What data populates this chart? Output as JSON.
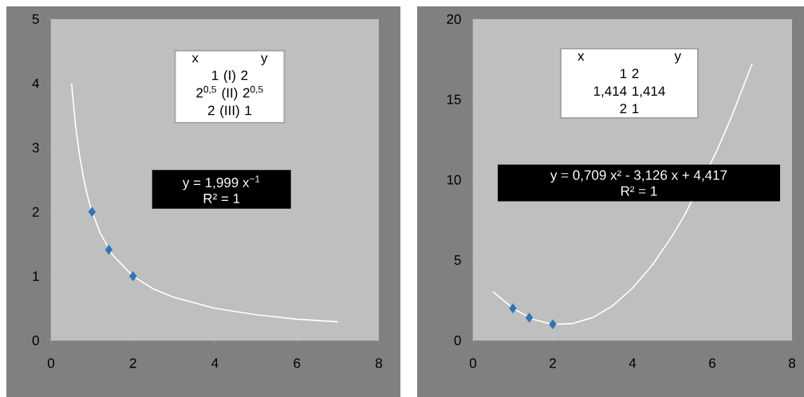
{
  "chart_data": [
    {
      "type": "scatter",
      "xlim": [
        0,
        8
      ],
      "ylim": [
        0,
        5
      ],
      "xticks": [
        0,
        2,
        4,
        6,
        8
      ],
      "yticks": [
        0,
        1,
        2,
        3,
        4,
        5
      ],
      "series": [
        {
          "marker": "diamond",
          "color": "#2e75b6",
          "x": [
            1,
            1.41,
            2
          ],
          "values": [
            2,
            1.41,
            1
          ]
        },
        {
          "type": "line",
          "marker": "none",
          "color": "#ffffff",
          "x": [
            0.5,
            0.6,
            0.7,
            0.8,
            0.9,
            1,
            1.2,
            1.5,
            2,
            2.5,
            3,
            4,
            5,
            6,
            7
          ],
          "values": [
            4,
            3.33,
            2.86,
            2.5,
            2.22,
            2,
            1.67,
            1.33,
            1,
            0.8,
            0.67,
            0.5,
            0.4,
            0.33,
            0.29
          ]
        }
      ],
      "annotations": [
        "x",
        "y",
        "1 (I) 2",
        "2$^{0,5}$ (II) 2$^{0,5}$",
        "2 (III) 1",
        "y = 1,999 x$^{−1}$",
        "R² = 1"
      ]
    },
    {
      "type": "scatter",
      "xlim": [
        0,
        8
      ],
      "ylim": [
        0,
        20
      ],
      "xticks": [
        0,
        2,
        4,
        6,
        8
      ],
      "yticks": [
        0,
        5,
        10,
        15,
        20
      ],
      "series": [
        {
          "marker": "diamond",
          "color": "#2e75b6",
          "x": [
            1,
            1.41,
            2
          ],
          "values": [
            2,
            1.41,
            1
          ]
        },
        {
          "type": "line",
          "marker": "none",
          "color": "#ffffff",
          "x": [
            0.5,
            1,
            1.5,
            2,
            2.5,
            3,
            3.5,
            4,
            4.5,
            5,
            5.3,
            6.1,
            6.5,
            7
          ],
          "values": [
            3.03,
            2.0,
            1.32,
            0.99,
            1.05,
            1.42,
            2.15,
            3.25,
            4.7,
            6.52,
            7.77,
            11.73,
            14.03,
            17.22
          ]
        }
      ],
      "annotations": [
        "x",
        "y",
        "1 2",
        "1,414 1,414",
        "2 1",
        "y = 0,709 x² - 3,126 x + 4,417",
        "R² = 1"
      ]
    }
  ]
}
